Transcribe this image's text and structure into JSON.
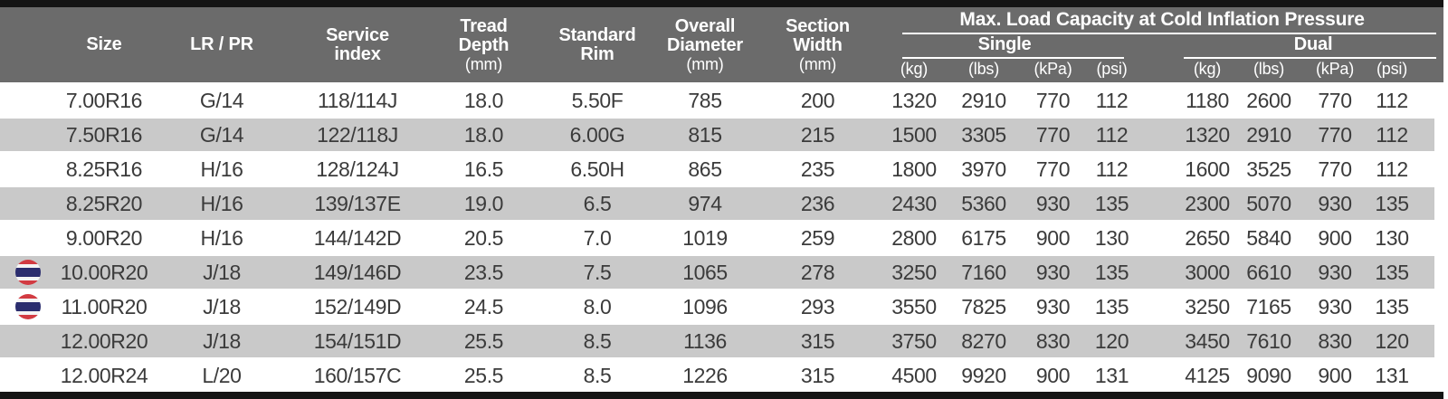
{
  "table": {
    "columns": {
      "size": {
        "label": "Size"
      },
      "lr_pr": {
        "label": "LR / PR"
      },
      "service_index": {
        "label": "Service\nindex"
      },
      "tread_depth": {
        "label": "Tread\nDepth",
        "unit": "(mm)"
      },
      "standard_rim": {
        "label": "Standard\nRim"
      },
      "overall_diameter": {
        "label": "Overall\nDiameter",
        "unit": "(mm)"
      },
      "section_width": {
        "label": "Section\nWidth",
        "unit": "(mm)"
      }
    },
    "load_capacity": {
      "title": "Max. Load Capacity at Cold Inflation Pressure",
      "single_label": "Single",
      "dual_label": "Dual",
      "units": [
        "(kg)",
        "(lbs)",
        "(kPa)",
        "(psi)"
      ]
    },
    "rows": [
      {
        "flag": false,
        "alt": false,
        "size": "7.00R16",
        "lr_pr": "G/14",
        "service_index": "118/114J",
        "tread_depth": "18.0",
        "standard_rim": "5.50F",
        "overall_diameter": "785",
        "section_width": "200",
        "single": [
          "1320",
          "2910",
          "770",
          "112"
        ],
        "dual": [
          "1180",
          "2600",
          "770",
          "112"
        ]
      },
      {
        "flag": false,
        "alt": true,
        "size": "7.50R16",
        "lr_pr": "G/14",
        "service_index": "122/118J",
        "tread_depth": "18.0",
        "standard_rim": "6.00G",
        "overall_diameter": "815",
        "section_width": "215",
        "single": [
          "1500",
          "3305",
          "770",
          "112"
        ],
        "dual": [
          "1320",
          "2910",
          "770",
          "112"
        ]
      },
      {
        "flag": false,
        "alt": false,
        "size": "8.25R16",
        "lr_pr": "H/16",
        "service_index": "128/124J",
        "tread_depth": "16.5",
        "standard_rim": "6.50H",
        "overall_diameter": "865",
        "section_width": "235",
        "single": [
          "1800",
          "3970",
          "770",
          "112"
        ],
        "dual": [
          "1600",
          "3525",
          "770",
          "112"
        ]
      },
      {
        "flag": false,
        "alt": true,
        "size": "8.25R20",
        "lr_pr": "H/16",
        "service_index": "139/137E",
        "tread_depth": "19.0",
        "standard_rim": "6.5",
        "overall_diameter": "974",
        "section_width": "236",
        "single": [
          "2430",
          "5360",
          "930",
          "135"
        ],
        "dual": [
          "2300",
          "5070",
          "930",
          "135"
        ]
      },
      {
        "flag": false,
        "alt": false,
        "size": "9.00R20",
        "lr_pr": "H/16",
        "service_index": "144/142D",
        "tread_depth": "20.5",
        "standard_rim": "7.0",
        "overall_diameter": "1019",
        "section_width": "259",
        "single": [
          "2800",
          "6175",
          "900",
          "130"
        ],
        "dual": [
          "2650",
          "5840",
          "900",
          "130"
        ]
      },
      {
        "flag": true,
        "alt": true,
        "size": "10.00R20",
        "lr_pr": "J/18",
        "service_index": "149/146D",
        "tread_depth": "23.5",
        "standard_rim": "7.5",
        "overall_diameter": "1065",
        "section_width": "278",
        "single": [
          "3250",
          "7160",
          "930",
          "135"
        ],
        "dual": [
          "3000",
          "6610",
          "930",
          "135"
        ]
      },
      {
        "flag": true,
        "alt": false,
        "size": "11.00R20",
        "lr_pr": "J/18",
        "service_index": "152/149D",
        "tread_depth": "24.5",
        "standard_rim": "8.0",
        "overall_diameter": "1096",
        "section_width": "293",
        "single": [
          "3550",
          "7825",
          "930",
          "135"
        ],
        "dual": [
          "3250",
          "7165",
          "930",
          "135"
        ]
      },
      {
        "flag": false,
        "alt": true,
        "size": "12.00R20",
        "lr_pr": "J/18",
        "service_index": "154/151D",
        "tread_depth": "25.5",
        "standard_rim": "8.5",
        "overall_diameter": "1136",
        "section_width": "315",
        "single": [
          "3750",
          "8270",
          "830",
          "120"
        ],
        "dual": [
          "3450",
          "7610",
          "830",
          "120"
        ]
      },
      {
        "flag": false,
        "alt": false,
        "size": "12.00R24",
        "lr_pr": "L/20",
        "service_index": "160/157C",
        "tread_depth": "25.5",
        "standard_rim": "8.5",
        "overall_diameter": "1226",
        "section_width": "315",
        "single": [
          "4500",
          "9920",
          "900",
          "131"
        ],
        "dual": [
          "4125",
          "9090",
          "900",
          "131"
        ]
      }
    ]
  },
  "icons": {
    "flag": "thailand-flag-icon"
  },
  "colors": {
    "header_bg": "#6b6b6b",
    "alt_row_bg": "#c9c9c9",
    "bar": "#141414",
    "data_text": "#3b3b3b",
    "header_text": "#ffffff",
    "flag_red": "#d23b42",
    "flag_blue": "#2b2d6e"
  }
}
